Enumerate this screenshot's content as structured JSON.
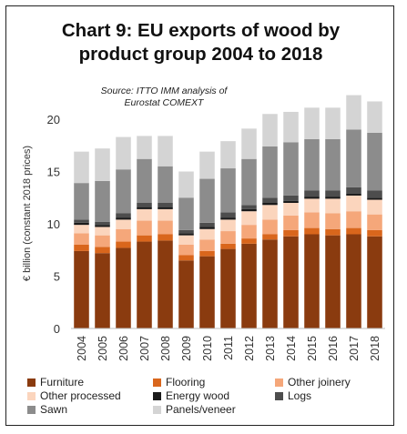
{
  "chart_data": {
    "type": "bar",
    "stacked": true,
    "title_lines": [
      "Chart 9: EU exports of wood by",
      "product group 2004 to 2018"
    ],
    "source_lines": [
      "Source: ITTO IMM analysis of",
      "Eurostat COMEXT"
    ],
    "ylabel": "€ billion (constant 2018 prices)",
    "xlabel": "",
    "ylim": [
      0,
      22
    ],
    "yticks": [
      0,
      5,
      10,
      15,
      20
    ],
    "categories": [
      "2004",
      "2005",
      "2006",
      "2007",
      "2008",
      "2009",
      "2010",
      "2011",
      "2012",
      "2013",
      "2014",
      "2015",
      "2016",
      "2017",
      "2018"
    ],
    "series": [
      {
        "name": "Furniture",
        "color": "#8a3b0f",
        "values": [
          7.4,
          7.2,
          7.7,
          8.3,
          8.4,
          6.5,
          6.9,
          7.6,
          8.1,
          8.5,
          8.8,
          9.0,
          8.9,
          9.0,
          8.8
        ]
      },
      {
        "name": "Flooring",
        "color": "#d9661c",
        "values": [
          0.6,
          0.6,
          0.6,
          0.6,
          0.6,
          0.5,
          0.5,
          0.5,
          0.5,
          0.5,
          0.6,
          0.6,
          0.6,
          0.6,
          0.6
        ]
      },
      {
        "name": "Other joinery",
        "color": "#f5a77a",
        "values": [
          1.1,
          1.1,
          1.2,
          1.4,
          1.3,
          1.0,
          1.1,
          1.2,
          1.3,
          1.4,
          1.4,
          1.5,
          1.5,
          1.6,
          1.5
        ]
      },
      {
        "name": "Other processed",
        "color": "#fbd5bd",
        "values": [
          0.8,
          0.8,
          0.9,
          1.1,
          1.1,
          0.9,
          1.0,
          1.1,
          1.3,
          1.4,
          1.2,
          1.3,
          1.4,
          1.5,
          1.4
        ]
      },
      {
        "name": "Energy wood",
        "color": "#1a1a1a",
        "values": [
          0.2,
          0.2,
          0.2,
          0.2,
          0.2,
          0.2,
          0.2,
          0.2,
          0.2,
          0.2,
          0.2,
          0.2,
          0.2,
          0.2,
          0.2
        ]
      },
      {
        "name": "Logs",
        "color": "#4d4d4d",
        "values": [
          0.3,
          0.3,
          0.4,
          0.4,
          0.4,
          0.3,
          0.4,
          0.5,
          0.4,
          0.5,
          0.5,
          0.6,
          0.6,
          0.6,
          0.7
        ]
      },
      {
        "name": "Sawn",
        "color": "#8c8c8c",
        "values": [
          3.5,
          3.9,
          4.2,
          4.2,
          3.5,
          3.1,
          4.2,
          4.2,
          4.4,
          4.9,
          5.1,
          4.9,
          4.9,
          5.5,
          5.5
        ]
      },
      {
        "name": "Panels/veneer",
        "color": "#d4d4d4",
        "values": [
          3.0,
          3.1,
          3.1,
          2.2,
          2.9,
          2.5,
          2.6,
          2.6,
          2.9,
          3.1,
          2.9,
          3.0,
          3.0,
          3.3,
          3.0
        ]
      }
    ],
    "grid": false,
    "legend_position": "bottom"
  }
}
